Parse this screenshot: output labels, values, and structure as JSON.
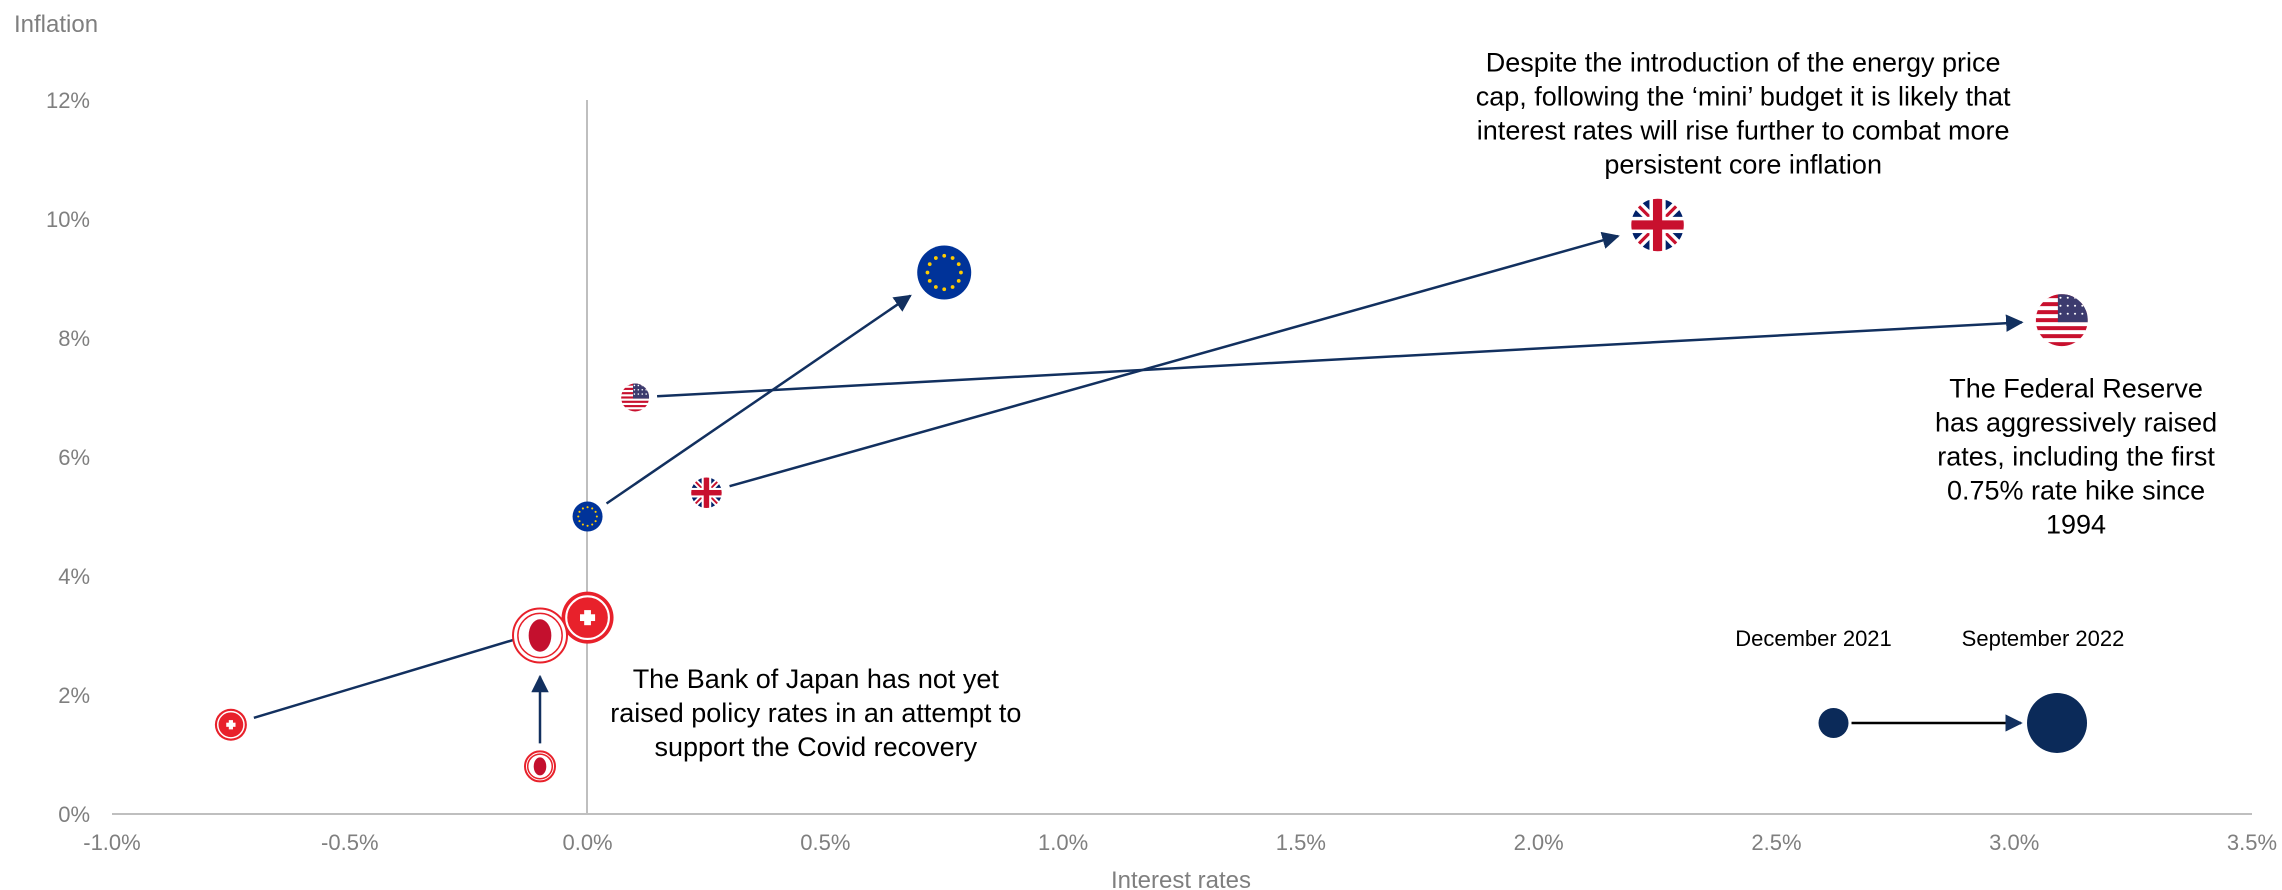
{
  "chart_data": {
    "type": "scatter",
    "title": "",
    "xlabel": "Interest rates",
    "ylabel": "Inflation",
    "xlim": [
      -0.01,
      0.035
    ],
    "ylim": [
      0,
      0.12
    ],
    "x_ticks": [
      "-1.0%",
      "-0.5%",
      "0.0%",
      "0.5%",
      "1.0%",
      "1.5%",
      "2.0%",
      "2.5%",
      "3.0%",
      "3.5%"
    ],
    "y_ticks": [
      "0%",
      "2%",
      "4%",
      "6%",
      "8%",
      "10%",
      "12%"
    ],
    "grid": false,
    "series": [
      {
        "key": "us",
        "flag": "us-flag-icon",
        "from": {
          "x": 0.001,
          "y": 0.07
        },
        "to": {
          "x": 0.031,
          "y": 0.083
        }
      },
      {
        "key": "uk",
        "flag": "uk-flag-icon",
        "from": {
          "x": 0.0025,
          "y": 0.054
        },
        "to": {
          "x": 0.0225,
          "y": 0.099
        }
      },
      {
        "key": "eu",
        "flag": "eu-flag-icon",
        "from": {
          "x": 0.0,
          "y": 0.05
        },
        "to": {
          "x": 0.0075,
          "y": 0.091
        }
      },
      {
        "key": "ch",
        "flag": "swiss-flag-icon",
        "from": {
          "x": -0.0075,
          "y": 0.015
        },
        "to": {
          "x": 0.0,
          "y": 0.033
        }
      },
      {
        "key": "jp",
        "flag": "japan-flag-icon",
        "from": {
          "x": -0.001,
          "y": 0.008
        },
        "to": {
          "x": -0.001,
          "y": 0.03
        }
      }
    ],
    "annotations": [
      {
        "lines": [
          "Despite the introduction of the energy price",
          "cap, following the ‘mini’ budget it is likely that",
          "interest rates will rise further to combat more",
          "persistent core inflation"
        ],
        "anchor_x": 0.0243,
        "anchor_y": 0.1248
      },
      {
        "lines": [
          "The Federal Reserve",
          "has aggressively raised",
          "rates, including the first",
          "0.75% rate hike since",
          "1994"
        ],
        "anchor_x": 0.0313,
        "anchor_y": 0.07
      },
      {
        "lines": [
          "The Bank of Japan has not yet",
          "raised policy rates in an attempt to",
          "support the Covid recovery"
        ],
        "anchor_x": 0.0048,
        "anchor_y": 0.0212
      }
    ],
    "legend": {
      "placement": "bottom-right",
      "start_label": "December 2021",
      "end_label": "September 2022",
      "start_x": 0.0262,
      "end_x": 0.0309,
      "y": 0.0153
    },
    "colors": {
      "navy": "#0b2a59",
      "arrow": "#12305f",
      "red": "#e8212b",
      "eu_blue": "#003399",
      "gold": "#ffcc00",
      "axis": "#bfbfbf",
      "tick": "#7f7f7f"
    }
  }
}
